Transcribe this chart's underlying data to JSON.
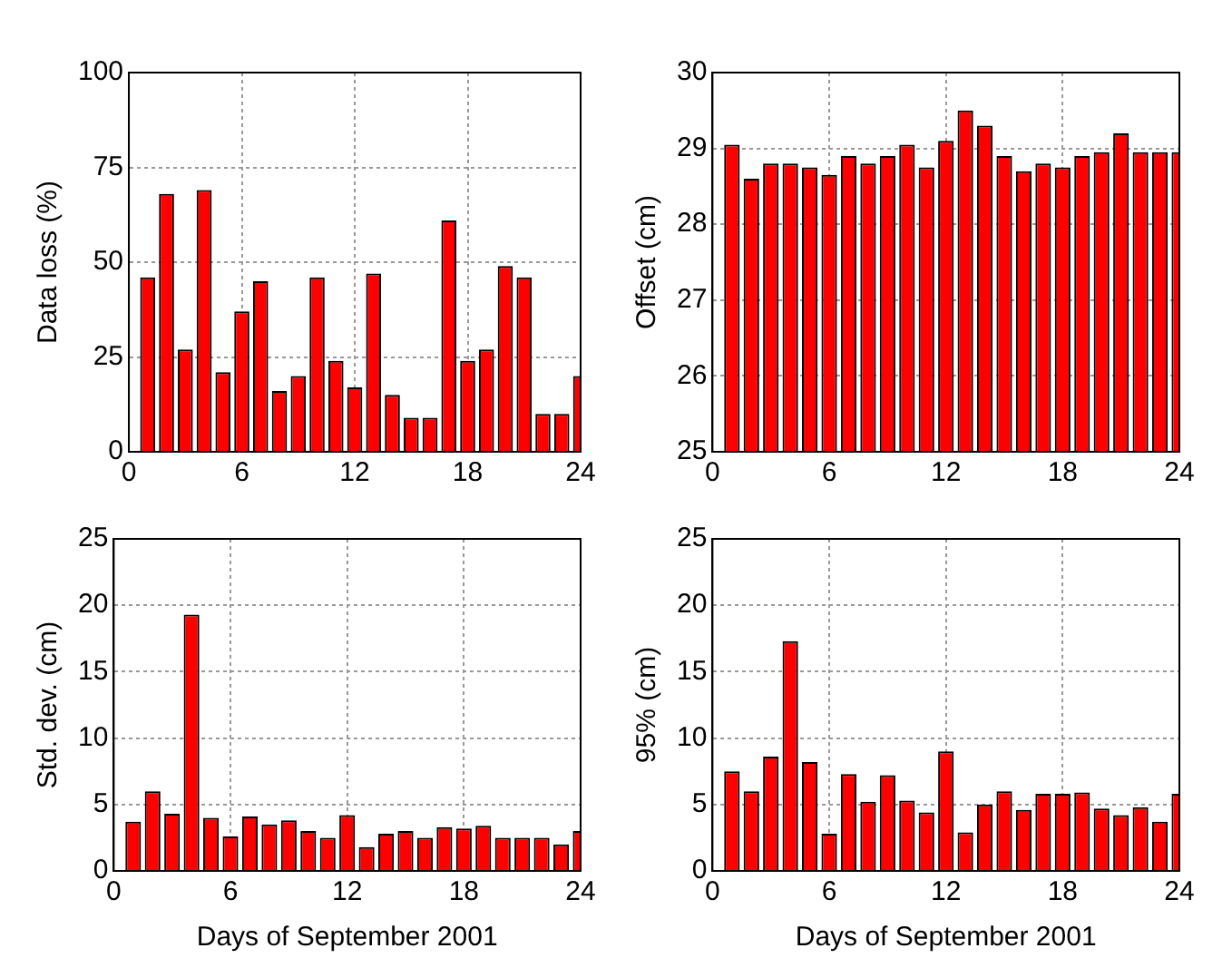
{
  "chart_data": [
    {
      "type": "bar",
      "ylabel": "Data loss (%)",
      "x": [
        1,
        2,
        3,
        4,
        5,
        6,
        7,
        8,
        9,
        10,
        11,
        12,
        13,
        14,
        15,
        16,
        17,
        18,
        19,
        20,
        21,
        22,
        23,
        24
      ],
      "values": [
        46,
        68,
        27,
        69,
        21,
        37,
        45,
        16,
        20,
        46,
        24,
        17,
        47,
        15,
        9,
        9,
        61,
        24,
        27,
        49,
        46,
        10,
        10,
        20
      ],
      "color": "#ff0000",
      "xlim": [
        0,
        24
      ],
      "xticks": [
        0,
        6,
        12,
        18,
        24
      ],
      "ylim": [
        0,
        100
      ],
      "yticks": [
        0,
        25,
        50,
        75,
        100
      ],
      "grid": true
    },
    {
      "type": "bar",
      "ylabel": "Offset (cm)",
      "x": [
        1,
        2,
        3,
        4,
        5,
        6,
        7,
        8,
        9,
        10,
        11,
        12,
        13,
        14,
        15,
        16,
        17,
        18,
        19,
        20,
        21,
        22,
        23,
        24
      ],
      "values": [
        29.05,
        28.6,
        28.8,
        28.8,
        28.75,
        28.65,
        28.9,
        28.8,
        28.9,
        29.05,
        28.75,
        29.1,
        29.5,
        29.3,
        28.9,
        28.7,
        28.8,
        28.75,
        28.9,
        28.95,
        29.2,
        28.95,
        28.95,
        28.95
      ],
      "color": "#ff0000",
      "xlim": [
        0,
        24
      ],
      "xticks": [
        0,
        6,
        12,
        18,
        24
      ],
      "ylim": [
        25,
        30
      ],
      "yticks": [
        25,
        26,
        27,
        28,
        29,
        30
      ],
      "grid": true
    },
    {
      "type": "bar",
      "xlabel": "Days of September 2001",
      "ylabel": "Std. dev. (cm)",
      "x": [
        1,
        2,
        3,
        4,
        5,
        6,
        7,
        8,
        9,
        10,
        11,
        12,
        13,
        14,
        15,
        16,
        17,
        18,
        19,
        20,
        21,
        22,
        23,
        24
      ],
      "values": [
        3.7,
        6,
        4.3,
        19.3,
        4,
        2.6,
        4.1,
        3.5,
        3.8,
        3,
        2.5,
        4.2,
        1.8,
        2.8,
        3,
        2.5,
        3.3,
        3.2,
        3.4,
        2.5,
        2.5,
        2.5,
        2,
        3
      ],
      "color": "#ff0000",
      "xlim": [
        0,
        24
      ],
      "xticks": [
        0,
        6,
        12,
        18,
        24
      ],
      "ylim": [
        0,
        25
      ],
      "yticks": [
        0,
        5,
        10,
        15,
        20,
        25
      ],
      "grid": true
    },
    {
      "type": "bar",
      "xlabel": "Days of September 2001",
      "ylabel": "95% (cm)",
      "x": [
        1,
        2,
        3,
        4,
        5,
        6,
        7,
        8,
        9,
        10,
        11,
        12,
        13,
        14,
        15,
        16,
        17,
        18,
        19,
        20,
        21,
        22,
        23,
        24
      ],
      "values": [
        7.5,
        6,
        8.6,
        17.3,
        8.2,
        2.8,
        7.3,
        5.2,
        7.2,
        5.3,
        4.4,
        9,
        2.9,
        5,
        6,
        4.6,
        5.8,
        5.8,
        5.9,
        4.7,
        4.2,
        4.8,
        3.7,
        5.8
      ],
      "color": "#ff0000",
      "xlim": [
        0,
        24
      ],
      "xticks": [
        0,
        6,
        12,
        18,
        24
      ],
      "ylim": [
        0,
        25
      ],
      "yticks": [
        0,
        5,
        10,
        15,
        20,
        25
      ],
      "grid": true
    }
  ]
}
